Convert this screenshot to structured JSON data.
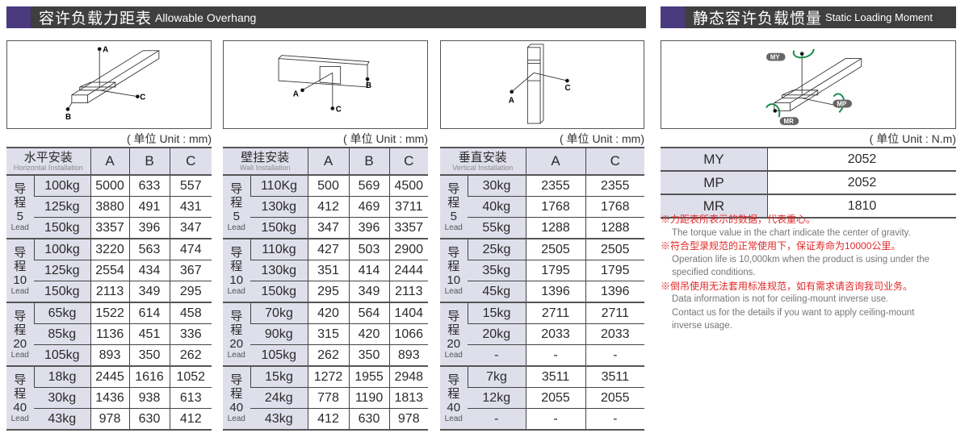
{
  "overhang": {
    "title_cn": "容许负载力距表",
    "title_en": "Allowable Overhang",
    "unit": "( 单位 Unit : mm)",
    "tables": [
      {
        "title_cn": "水平安装",
        "title_en": "Horizontal Installation",
        "columns": [
          "A",
          "B",
          "C"
        ],
        "diagram_labels": [
          "A",
          "B",
          "C"
        ],
        "groups": [
          {
            "lead_cn1": "导",
            "lead_cn2": "程",
            "lead_num": "5",
            "lead_en": "Lead",
            "rows": [
              {
                "load": "100kg",
                "values": [
                  "5000",
                  "633",
                  "557"
                ]
              },
              {
                "load": "125kg",
                "values": [
                  "3880",
                  "491",
                  "431"
                ]
              },
              {
                "load": "150kg",
                "values": [
                  "3357",
                  "396",
                  "347"
                ]
              }
            ]
          },
          {
            "lead_cn1": "导",
            "lead_cn2": "程",
            "lead_num": "10",
            "lead_en": "Lead",
            "rows": [
              {
                "load": "100kg",
                "values": [
                  "3220",
                  "563",
                  "474"
                ]
              },
              {
                "load": "125kg",
                "values": [
                  "2554",
                  "434",
                  "367"
                ]
              },
              {
                "load": "150kg",
                "values": [
                  "2113",
                  "349",
                  "295"
                ]
              }
            ]
          },
          {
            "lead_cn1": "导",
            "lead_cn2": "程",
            "lead_num": "20",
            "lead_en": "Lead",
            "rows": [
              {
                "load": "65kg",
                "values": [
                  "1522",
                  "614",
                  "458"
                ]
              },
              {
                "load": "85kg",
                "values": [
                  "1136",
                  "451",
                  "336"
                ]
              },
              {
                "load": "105kg",
                "values": [
                  "893",
                  "350",
                  "262"
                ]
              }
            ]
          },
          {
            "lead_cn1": "导",
            "lead_cn2": "程",
            "lead_num": "40",
            "lead_en": "Lead",
            "rows": [
              {
                "load": "18kg",
                "values": [
                  "2445",
                  "1616",
                  "1052"
                ]
              },
              {
                "load": "30kg",
                "values": [
                  "1436",
                  "938",
                  "613"
                ]
              },
              {
                "load": "43kg",
                "values": [
                  "978",
                  "630",
                  "412"
                ]
              }
            ]
          }
        ]
      },
      {
        "title_cn": "壁挂安装",
        "title_en": "Wall Installation",
        "columns": [
          "A",
          "B",
          "C"
        ],
        "diagram_labels": [
          "A",
          "B",
          "C"
        ],
        "groups": [
          {
            "lead_cn1": "导",
            "lead_cn2": "程",
            "lead_num": "5",
            "lead_en": "Lead",
            "rows": [
              {
                "load": "110Kg",
                "values": [
                  "500",
                  "569",
                  "4500"
                ]
              },
              {
                "load": "130kg",
                "values": [
                  "412",
                  "469",
                  "3711"
                ]
              },
              {
                "load": "150kg",
                "values": [
                  "347",
                  "396",
                  "3357"
                ]
              }
            ]
          },
          {
            "lead_cn1": "导",
            "lead_cn2": "程",
            "lead_num": "10",
            "lead_en": "Lead",
            "rows": [
              {
                "load": "110kg",
                "values": [
                  "427",
                  "503",
                  "2900"
                ]
              },
              {
                "load": "130kg",
                "values": [
                  "351",
                  "414",
                  "2444"
                ]
              },
              {
                "load": "150kg",
                "values": [
                  "295",
                  "349",
                  "2113"
                ]
              }
            ]
          },
          {
            "lead_cn1": "导",
            "lead_cn2": "程",
            "lead_num": "20",
            "lead_en": "Lead",
            "rows": [
              {
                "load": "70kg",
                "values": [
                  "420",
                  "564",
                  "1404"
                ]
              },
              {
                "load": "90kg",
                "values": [
                  "315",
                  "420",
                  "1066"
                ]
              },
              {
                "load": "105kg",
                "values": [
                  "262",
                  "350",
                  "893"
                ]
              }
            ]
          },
          {
            "lead_cn1": "导",
            "lead_cn2": "程",
            "lead_num": "40",
            "lead_en": "Lead",
            "rows": [
              {
                "load": "15kg",
                "values": [
                  "1272",
                  "1955",
                  "2948"
                ]
              },
              {
                "load": "24kg",
                "values": [
                  "778",
                  "1190",
                  "1813"
                ]
              },
              {
                "load": "43kg",
                "values": [
                  "412",
                  "630",
                  "978"
                ]
              }
            ]
          }
        ]
      },
      {
        "title_cn": "垂直安装",
        "title_en": "Vertical Installation",
        "columns": [
          "A",
          "C"
        ],
        "diagram_labels": [
          "A",
          "C"
        ],
        "groups": [
          {
            "lead_cn1": "导",
            "lead_cn2": "程",
            "lead_num": "5",
            "lead_en": "Lead",
            "rows": [
              {
                "load": "30kg",
                "values": [
                  "2355",
                  "2355"
                ]
              },
              {
                "load": "40kg",
                "values": [
                  "1768",
                  "1768"
                ]
              },
              {
                "load": "55kg",
                "values": [
                  "1288",
                  "1288"
                ]
              }
            ]
          },
          {
            "lead_cn1": "导",
            "lead_cn2": "程",
            "lead_num": "10",
            "lead_en": "Lead",
            "rows": [
              {
                "load": "25kg",
                "values": [
                  "2505",
                  "2505"
                ]
              },
              {
                "load": "35kg",
                "values": [
                  "1795",
                  "1795"
                ]
              },
              {
                "load": "45kg",
                "values": [
                  "1396",
                  "1396"
                ]
              }
            ]
          },
          {
            "lead_cn1": "导",
            "lead_cn2": "程",
            "lead_num": "20",
            "lead_en": "Lead",
            "rows": [
              {
                "load": "15kg",
                "values": [
                  "2711",
                  "2711"
                ]
              },
              {
                "load": "20kg",
                "values": [
                  "2033",
                  "2033"
                ]
              },
              {
                "load": "-",
                "values": [
                  "-",
                  "-"
                ]
              }
            ]
          },
          {
            "lead_cn1": "导",
            "lead_cn2": "程",
            "lead_num": "40",
            "lead_en": "Lead",
            "rows": [
              {
                "load": "7kg",
                "values": [
                  "3511",
                  "3511"
                ]
              },
              {
                "load": "12kg",
                "values": [
                  "2055",
                  "2055"
                ]
              },
              {
                "load": "-",
                "values": [
                  "-",
                  "-"
                ]
              }
            ]
          }
        ]
      }
    ]
  },
  "moment": {
    "title_cn": "静态容许负载惯量",
    "title_en": "Static Loading Moment",
    "unit": "( 单位 Unit : N.m)",
    "diagram_labels": [
      "MY",
      "MP",
      "MR"
    ],
    "rows": [
      {
        "key": "MY",
        "value": "2052"
      },
      {
        "key": "MP",
        "value": "2052"
      },
      {
        "key": "MR",
        "value": "1810"
      }
    ],
    "notes": [
      {
        "cn": "※力距表所表示的数据，代表重心。",
        "en": [
          "The torque value in the chart indicate the center of gravity."
        ]
      },
      {
        "cn": "※符合型录规范的正常使用下，保证寿命为10000公里。",
        "en": [
          "Operation life is 10,000km when the product is using under the",
          "specified conditions."
        ]
      },
      {
        "cn": "※倒吊使用无法套用标准规范，如有需求请咨询我司业务。",
        "en": [
          "Data information is not for ceiling-mount inverse use.",
          "Contact us for the details if you want to apply ceiling-mount",
          "inverse usage."
        ]
      }
    ]
  },
  "colors": {
    "header_bar": "#3f3f3f",
    "header_accent": "#4a3a7e",
    "cell_shade": "#dfdfec",
    "note_red": "#e02828",
    "arrow_green": "#1a8a4a"
  }
}
